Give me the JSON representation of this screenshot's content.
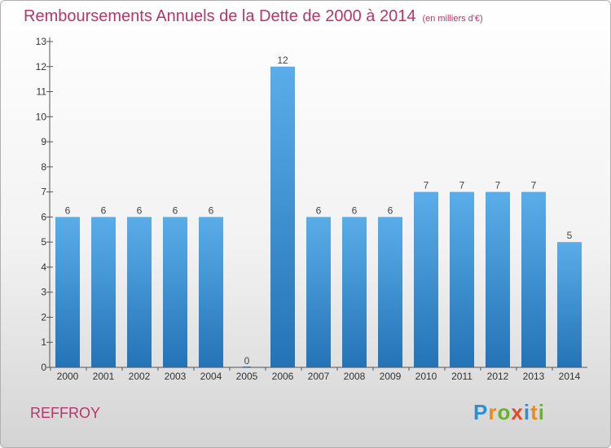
{
  "chart_data": {
    "type": "bar",
    "title": "Remboursements Annuels de la Dette de 2000 à 2014",
    "subtitle": "(en milliers d'€)",
    "categories": [
      "2000",
      "2001",
      "2002",
      "2003",
      "2004",
      "2005",
      "2006",
      "2007",
      "2008",
      "2009",
      "2010",
      "2011",
      "2012",
      "2013",
      "2014"
    ],
    "values": [
      6,
      6,
      6,
      6,
      6,
      0,
      12,
      6,
      6,
      6,
      7,
      7,
      7,
      7,
      5
    ],
    "ylim": [
      0,
      13
    ],
    "yticks": [
      0,
      1,
      2,
      3,
      4,
      5,
      6,
      7,
      8,
      9,
      10,
      11,
      12,
      13
    ],
    "xlabel": "",
    "ylabel": "",
    "grid": false,
    "bar_color": "#3a8fd4"
  },
  "place_name": "REFFROY",
  "brand": {
    "letters": [
      "P",
      "r",
      "o",
      "x",
      "i",
      "t",
      "i"
    ]
  }
}
